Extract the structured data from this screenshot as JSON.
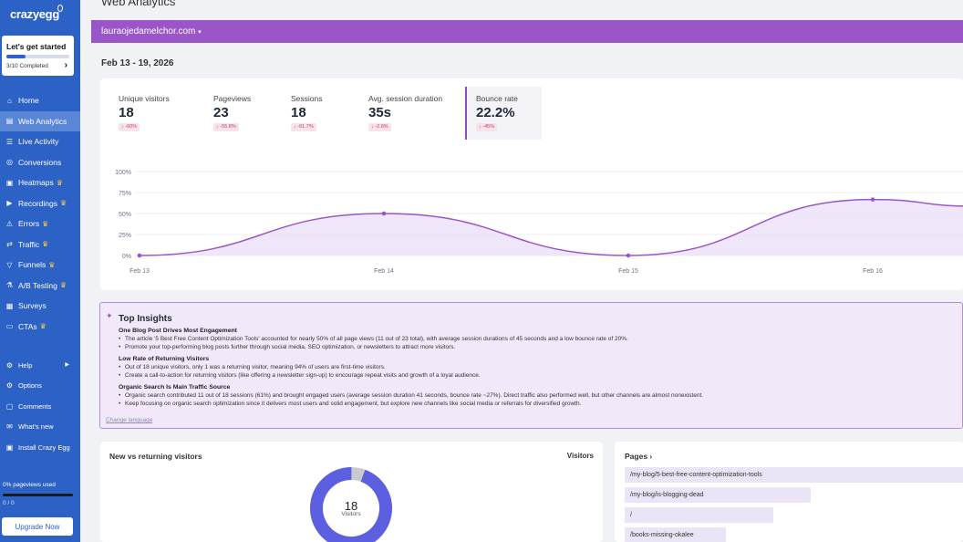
{
  "sidebar": {
    "logo": "crazyegg",
    "started": {
      "title": "Let's get started",
      "progress": "3/10 Completed",
      "fraction": 0.3
    },
    "items": [
      {
        "label": "Home",
        "icon": "home-icon",
        "glyph": "⌂",
        "crown": false,
        "active": false
      },
      {
        "label": "Web Analytics",
        "icon": "analytics-icon",
        "glyph": "▤",
        "crown": false,
        "active": true
      },
      {
        "label": "Live Activity",
        "icon": "live-activity-icon",
        "glyph": "☰",
        "crown": false,
        "active": false
      },
      {
        "label": "Conversions",
        "icon": "conversions-icon",
        "glyph": "◎",
        "crown": false,
        "active": false
      },
      {
        "label": "Heatmaps",
        "icon": "heatmaps-icon",
        "glyph": "▣",
        "crown": true,
        "active": false
      },
      {
        "label": "Recordings",
        "icon": "recordings-icon",
        "glyph": "▶",
        "crown": true,
        "active": false
      },
      {
        "label": "Errors",
        "icon": "errors-icon",
        "glyph": "⚠",
        "crown": true,
        "active": false
      },
      {
        "label": "Traffic",
        "icon": "traffic-icon",
        "glyph": "⇄",
        "crown": true,
        "active": false
      },
      {
        "label": "Funnels",
        "icon": "funnels-icon",
        "glyph": "▽",
        "crown": true,
        "active": false
      },
      {
        "label": "A/B Testing",
        "icon": "ab-testing-icon",
        "glyph": "⚗",
        "crown": true,
        "active": false
      },
      {
        "label": "Surveys",
        "icon": "surveys-icon",
        "glyph": "▦",
        "crown": false,
        "active": false
      },
      {
        "label": "CTAs",
        "icon": "ctas-icon",
        "glyph": "▭",
        "crown": true,
        "active": false
      }
    ],
    "secondary": [
      {
        "label": "Help",
        "icon": "help-icon",
        "glyph": "⚙",
        "arrow": true
      },
      {
        "label": "Options",
        "icon": "options-icon",
        "glyph": "⚙",
        "arrow": false
      },
      {
        "label": "Comments",
        "icon": "comments-icon",
        "glyph": "▢",
        "arrow": false
      },
      {
        "label": "What's new",
        "icon": "whats-new-icon",
        "glyph": "✉",
        "arrow": false
      },
      {
        "label": "Install Crazy Egg",
        "icon": "install-icon",
        "glyph": "▣",
        "arrow": false
      }
    ],
    "pageviews_used": "0% pageviews used",
    "pageviews_count": "0 / 0",
    "upgrade_label": "Upgrade Now"
  },
  "header": {
    "title": "Web Analytics",
    "site": "lauraojedamelchor.com",
    "date_range": "Feb 13 - 19, 2026"
  },
  "metrics": [
    {
      "label": "Unique visitors",
      "value": "18",
      "delta": "↓ -60%",
      "active": false
    },
    {
      "label": "Pageviews",
      "value": "23",
      "delta": "↓ -55.8%",
      "active": false
    },
    {
      "label": "Sessions",
      "value": "18",
      "delta": "↓ -61.7%",
      "active": false
    },
    {
      "label": "Avg. session duration",
      "value": "35s",
      "delta": "↓ -2.8%",
      "active": false
    },
    {
      "label": "Bounce rate",
      "value": "22.2%",
      "delta": "↓ -45%",
      "active": true
    }
  ],
  "chart_data": {
    "type": "area",
    "y_ticks": [
      "100%",
      "75%",
      "50%",
      "25%",
      "0%"
    ],
    "ylim": [
      0,
      100
    ],
    "x_labels": [
      "Feb 13",
      "Feb 14",
      "Feb 15",
      "Feb 16"
    ],
    "series": [
      {
        "values": [
          0,
          50,
          0,
          66.7
        ]
      }
    ],
    "colors": {
      "line": "#9a56c8",
      "fill": "#eadcf6"
    }
  },
  "insights": {
    "title": "Top Insights",
    "sections": [
      {
        "title": "One Blog Post Drives Most Engagement",
        "bullets": [
          "The article '5 Best Free Content Optimization Tools' accounted for nearly 50% of all page views (11 out of 23 total), with average session durations of 45 seconds and a low bounce rate of 20%.",
          "Promote your top-performing blog posts further through social media, SEO optimization, or newsletters to attract more visitors."
        ]
      },
      {
        "title": "Low Rate of Returning Visitors",
        "bullets": [
          "Out of 18 unique visitors, only 1 was a returning visitor, meaning 94% of users are first-time visitors.",
          "Create a call-to-action for returning visitors (like offering a newsletter sign-up) to encourage repeat visits and growth of a loyal audience."
        ]
      },
      {
        "title": "Organic Search Is Main Traffic Source",
        "bullets": [
          "Organic search contributed 11 out of 18 sessions (61%) and brought engaged users (average session duration 41 seconds, bounce rate ~27%). Direct traffic also performed well, but other channels are almost nonexistent.",
          "Keep focusing on organic search optimization since it delivers most users and solid engagement, but explore new channels like social media or referrals for diversified growth."
        ]
      }
    ],
    "change_language": "Change language"
  },
  "new_vs_returning": {
    "title": "New vs returning visitors",
    "column": "Visitors",
    "total": "18",
    "total_label": "Visitors",
    "new": 17,
    "returning": 1,
    "colors": {
      "new": "#5b5fe0",
      "returning": "#c9c9cf"
    }
  },
  "pages": {
    "title": "Pages",
    "rows": [
      {
        "path": "/my-blog/5-best-free-content-optimization-tools",
        "share": 1.0
      },
      {
        "path": "/my-blog/is-blogging-dead",
        "share": 0.55
      },
      {
        "path": "/",
        "share": 0.44
      },
      {
        "path": "/books-missing-okalee",
        "share": 0.3
      }
    ]
  }
}
